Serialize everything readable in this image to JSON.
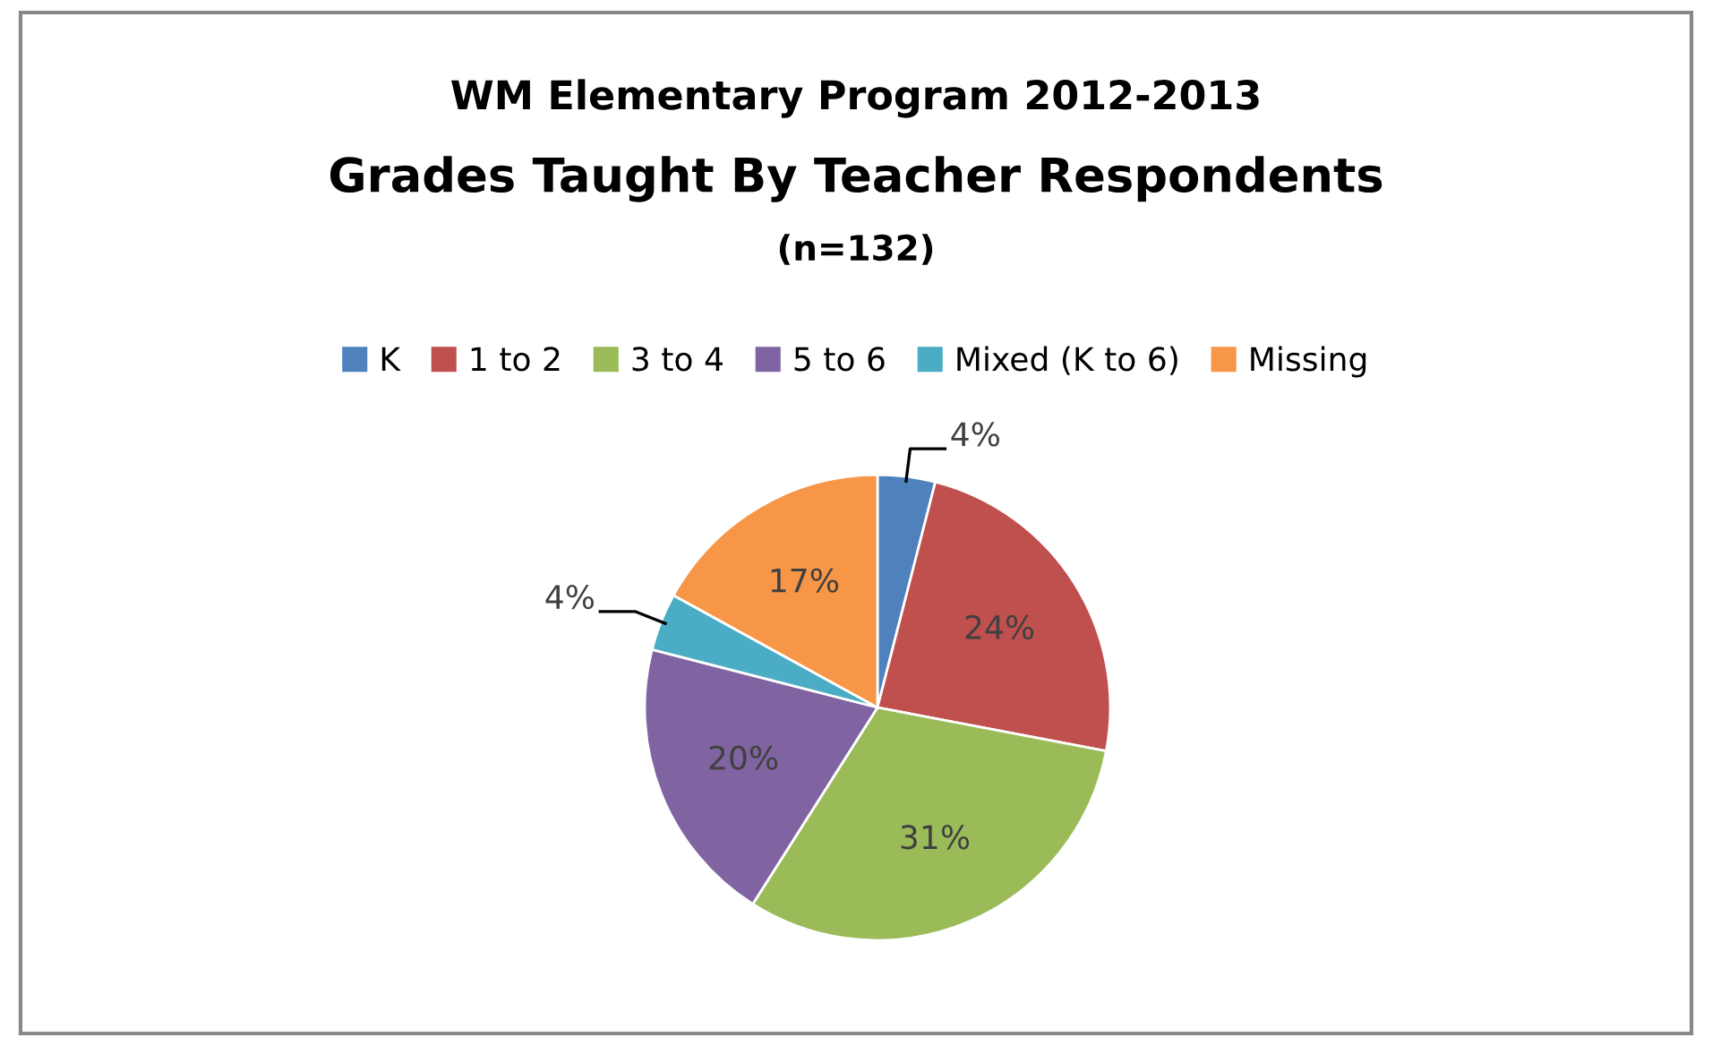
{
  "chart_data": {
    "type": "pie",
    "title": "WM Elementary Program 2012-2013",
    "subtitle": "Grades Taught By Teacher Respondents",
    "annotations": [
      "(n=132)"
    ],
    "categories": [
      "K",
      "1 to 2",
      "3 to 4",
      "5 to 6",
      "Mixed (K to 6)",
      "Missing"
    ],
    "values": [
      4,
      24,
      31,
      20,
      4,
      17
    ],
    "colors": [
      "#4f81bd",
      "#c0504d",
      "#9bbb59",
      "#8064a2",
      "#4bacc6",
      "#f79646"
    ],
    "value_labels": [
      "4%",
      "24%",
      "31%",
      "20%",
      "4%",
      "17%"
    ],
    "legend": "top"
  }
}
